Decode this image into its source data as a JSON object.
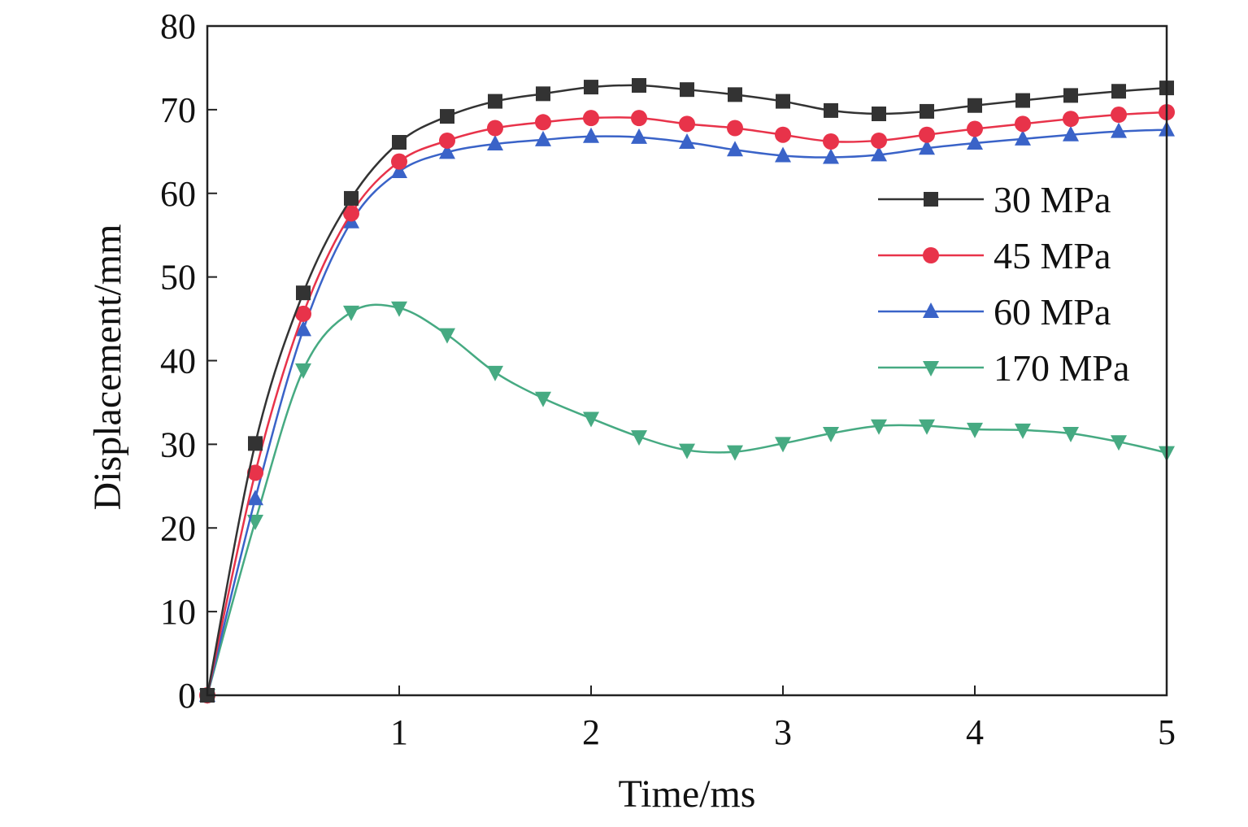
{
  "chart_data": {
    "type": "line",
    "title": "",
    "xlabel": "Time/ms",
    "ylabel": "Displacement/mm",
    "xlim": [
      0,
      5
    ],
    "ylim": [
      0,
      80
    ],
    "xticks": [
      1,
      2,
      3,
      4,
      5
    ],
    "yticks": [
      0,
      10,
      20,
      30,
      40,
      50,
      60,
      70,
      80
    ],
    "grid": false,
    "legend_position": "right",
    "x": [
      0,
      0.25,
      0.5,
      0.75,
      1,
      1.25,
      1.5,
      1.75,
      2,
      2.25,
      2.5,
      2.75,
      3,
      3.25,
      3.5,
      3.75,
      4,
      4.25,
      4.5,
      4.75,
      5
    ],
    "series": [
      {
        "name": "30 MPa",
        "color": "#333333",
        "marker": "square",
        "values": [
          0,
          30.1,
          48.1,
          59.4,
          66.1,
          69.2,
          71.0,
          71.9,
          72.7,
          72.9,
          72.4,
          71.8,
          71.0,
          69.9,
          69.5,
          69.8,
          70.5,
          71.1,
          71.7,
          72.2,
          72.6
        ]
      },
      {
        "name": "45 MPa",
        "color": "#e8334a",
        "marker": "circle",
        "values": [
          0,
          26.6,
          45.6,
          57.6,
          63.8,
          66.3,
          67.8,
          68.5,
          69.0,
          69.0,
          68.3,
          67.8,
          67.0,
          66.2,
          66.3,
          67.0,
          67.7,
          68.3,
          68.9,
          69.4,
          69.7
        ]
      },
      {
        "name": "60 MPa",
        "color": "#3a63c8",
        "marker": "triangle-up",
        "values": [
          0,
          23.5,
          43.7,
          56.6,
          62.6,
          64.9,
          65.9,
          66.4,
          66.8,
          66.7,
          66.1,
          65.2,
          64.5,
          64.3,
          64.6,
          65.4,
          66.0,
          66.5,
          67.0,
          67.4,
          67.6
        ]
      },
      {
        "name": "170 MPa",
        "color": "#46aa82",
        "marker": "triangle-down",
        "values": [
          0,
          20.8,
          38.9,
          45.8,
          46.3,
          43.1,
          38.6,
          35.5,
          33.1,
          30.9,
          29.3,
          29.1,
          30.1,
          31.3,
          32.2,
          32.2,
          31.8,
          31.7,
          31.3,
          30.3,
          29.0
        ]
      }
    ]
  }
}
